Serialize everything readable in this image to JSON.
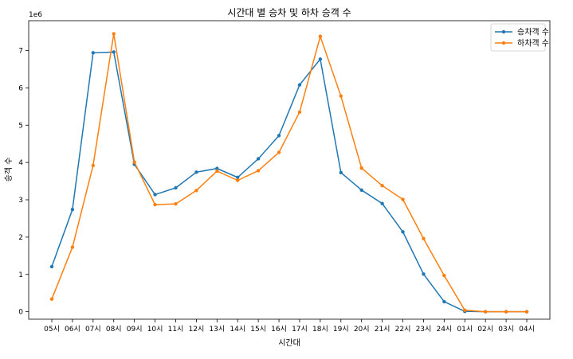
{
  "chart_data": {
    "type": "line",
    "title": "시간대 별 승차 및 하차 승객 수",
    "xlabel": "시간대",
    "ylabel": "승객 수",
    "y_offset_label": "1e6",
    "categories": [
      "05시",
      "06시",
      "07시",
      "08시",
      "09시",
      "10시",
      "11시",
      "12시",
      "13시",
      "14시",
      "15시",
      "16시",
      "17시",
      "18시",
      "19시",
      "20시",
      "21시",
      "22시",
      "23시",
      "24시",
      "01시",
      "02시",
      "03시",
      "04시"
    ],
    "series": [
      {
        "name": "승차객 수",
        "color": "#1f77b4",
        "values": [
          1.21,
          2.74,
          6.94,
          6.96,
          3.95,
          3.14,
          3.32,
          3.74,
          3.84,
          3.6,
          4.1,
          4.72,
          6.08,
          6.77,
          3.73,
          3.26,
          2.9,
          2.14,
          1.01,
          0.27,
          0.01,
          0.0,
          0.0,
          0.0
        ]
      },
      {
        "name": "하차객 수",
        "color": "#ff7f0e",
        "values": [
          0.34,
          1.73,
          3.92,
          7.45,
          4.01,
          2.87,
          2.89,
          3.25,
          3.77,
          3.52,
          3.78,
          4.27,
          5.35,
          7.38,
          5.78,
          3.85,
          3.38,
          3.01,
          1.96,
          0.97,
          0.04,
          0.0,
          0.0,
          0.0
        ]
      }
    ],
    "y_ticks": [
      "0",
      "1",
      "2",
      "3",
      "4",
      "5",
      "6",
      "7"
    ],
    "ylim": [
      -0.2,
      7.8
    ],
    "grid": false,
    "legend_position": "top-right"
  }
}
